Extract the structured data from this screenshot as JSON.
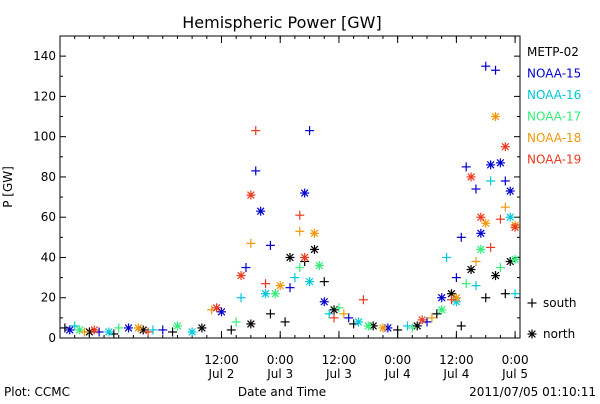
{
  "chart_data": {
    "type": "scatter",
    "title": "Hemispheric Power [GW]",
    "xlabel": "Date and Time",
    "ylabel": "P [GW]",
    "ylim": [
      0,
      150
    ],
    "yticks": [
      0,
      20,
      40,
      60,
      80,
      100,
      120,
      140
    ],
    "xlim": [
      "2011-07-01T03:00",
      "2011-07-05T01:00"
    ],
    "xticks": [
      {
        "time": "2011-07-02T12:00",
        "line1": "12:00",
        "line2": "Jul 2"
      },
      {
        "time": "2011-07-03T00:00",
        "line1": "0:00",
        "line2": "Jul 3"
      },
      {
        "time": "2011-07-03T12:00",
        "line1": "12:00",
        "line2": "Jul 3"
      },
      {
        "time": "2011-07-04T00:00",
        "line1": "0:00",
        "line2": "Jul 4"
      },
      {
        "time": "2011-07-04T12:00",
        "line1": "12:00",
        "line2": "Jul 4"
      },
      {
        "time": "2011-07-05T00:00",
        "line1": "0:00",
        "line2": "Jul 5"
      }
    ],
    "grid": false,
    "legend_position": "right",
    "marker_legend": [
      {
        "marker": "+",
        "label": "south"
      },
      {
        "marker": "*",
        "label": "north"
      }
    ],
    "series": [
      {
        "name": "METP-02",
        "color": "#000000",
        "points": [
          {
            "t": "2011-07-01T04:00",
            "v": 5,
            "h": "+"
          },
          {
            "t": "2011-07-01T09:00",
            "v": 3,
            "h": "*"
          },
          {
            "t": "2011-07-01T14:00",
            "v": 2,
            "h": "+"
          },
          {
            "t": "2011-07-01T20:00",
            "v": 4,
            "h": "*"
          },
          {
            "t": "2011-07-02T02:00",
            "v": 3,
            "h": "+"
          },
          {
            "t": "2011-07-02T08:00",
            "v": 5,
            "h": "*"
          },
          {
            "t": "2011-07-02T14:00",
            "v": 4,
            "h": "+"
          },
          {
            "t": "2011-07-02T18:00",
            "v": 7,
            "h": "*"
          },
          {
            "t": "2011-07-02T22:00",
            "v": 12,
            "h": "+"
          },
          {
            "t": "2011-07-03T01:00",
            "v": 8,
            "h": "+"
          },
          {
            "t": "2011-07-03T02:00",
            "v": 40,
            "h": "*"
          },
          {
            "t": "2011-07-03T05:00",
            "v": 38,
            "h": "+"
          },
          {
            "t": "2011-07-03T07:00",
            "v": 44,
            "h": "*"
          },
          {
            "t": "2011-07-03T09:00",
            "v": 28,
            "h": "+"
          },
          {
            "t": "2011-07-03T11:00",
            "v": 14,
            "h": "*"
          },
          {
            "t": "2011-07-03T15:00",
            "v": 7,
            "h": "+"
          },
          {
            "t": "2011-07-03T19:00",
            "v": 6,
            "h": "*"
          },
          {
            "t": "2011-07-04T00:00",
            "v": 4,
            "h": "+"
          },
          {
            "t": "2011-07-04T04:00",
            "v": 6,
            "h": "*"
          },
          {
            "t": "2011-07-04T08:00",
            "v": 12,
            "h": "+"
          },
          {
            "t": "2011-07-04T11:00",
            "v": 22,
            "h": "*"
          },
          {
            "t": "2011-07-04T13:00",
            "v": 6,
            "h": "+"
          },
          {
            "t": "2011-07-04T15:00",
            "v": 34,
            "h": "*"
          },
          {
            "t": "2011-07-04T18:00",
            "v": 20,
            "h": "+"
          },
          {
            "t": "2011-07-04T20:00",
            "v": 31,
            "h": "*"
          },
          {
            "t": "2011-07-04T22:00",
            "v": 22,
            "h": "+"
          },
          {
            "t": "2011-07-04T23:00",
            "v": 38,
            "h": "*"
          }
        ]
      },
      {
        "name": "NOAA-15",
        "color": "#0000cc",
        "points": [
          {
            "t": "2011-07-01T05:00",
            "v": 4,
            "h": "*"
          },
          {
            "t": "2011-07-01T11:00",
            "v": 3,
            "h": "+"
          },
          {
            "t": "2011-07-01T17:00",
            "v": 5,
            "h": "*"
          },
          {
            "t": "2011-07-02T00:00",
            "v": 4,
            "h": "+"
          },
          {
            "t": "2011-07-02T12:00",
            "v": 13,
            "h": "*"
          },
          {
            "t": "2011-07-02T17:00",
            "v": 35,
            "h": "+"
          },
          {
            "t": "2011-07-02T19:00",
            "v": 83,
            "h": "+"
          },
          {
            "t": "2011-07-02T20:00",
            "v": 63,
            "h": "*"
          },
          {
            "t": "2011-07-02T22:00",
            "v": 46,
            "h": "+"
          },
          {
            "t": "2011-07-03T02:00",
            "v": 25,
            "h": "+"
          },
          {
            "t": "2011-07-03T05:00",
            "v": 72,
            "h": "*"
          },
          {
            "t": "2011-07-03T06:00",
            "v": 103,
            "h": "+"
          },
          {
            "t": "2011-07-03T09:00",
            "v": 18,
            "h": "*"
          },
          {
            "t": "2011-07-03T14:00",
            "v": 10,
            "h": "+"
          },
          {
            "t": "2011-07-03T22:00",
            "v": 5,
            "h": "*"
          },
          {
            "t": "2011-07-04T06:00",
            "v": 8,
            "h": "+"
          },
          {
            "t": "2011-07-04T09:00",
            "v": 20,
            "h": "*"
          },
          {
            "t": "2011-07-04T12:00",
            "v": 30,
            "h": "+"
          },
          {
            "t": "2011-07-04T13:00",
            "v": 50,
            "h": "+"
          },
          {
            "t": "2011-07-04T14:00",
            "v": 85,
            "h": "+"
          },
          {
            "t": "2011-07-04T16:00",
            "v": 74,
            "h": "+"
          },
          {
            "t": "2011-07-04T17:00",
            "v": 52,
            "h": "*"
          },
          {
            "t": "2011-07-04T18:00",
            "v": 135,
            "h": "+"
          },
          {
            "t": "2011-07-04T19:00",
            "v": 86,
            "h": "*"
          },
          {
            "t": "2011-07-04T20:00",
            "v": 133,
            "h": "+"
          },
          {
            "t": "2011-07-04T21:00",
            "v": 87,
            "h": "*"
          },
          {
            "t": "2011-07-04T22:00",
            "v": 78,
            "h": "+"
          },
          {
            "t": "2011-07-04T23:00",
            "v": 73,
            "h": "*"
          }
        ]
      },
      {
        "name": "NOAA-16",
        "color": "#00c8d8",
        "points": [
          {
            "t": "2011-07-01T06:00",
            "v": 6,
            "h": "+"
          },
          {
            "t": "2011-07-01T13:00",
            "v": 3,
            "h": "*"
          },
          {
            "t": "2011-07-01T22:00",
            "v": 4,
            "h": "+"
          },
          {
            "t": "2011-07-02T06:00",
            "v": 3,
            "h": "*"
          },
          {
            "t": "2011-07-02T16:00",
            "v": 20,
            "h": "+"
          },
          {
            "t": "2011-07-02T21:00",
            "v": 22,
            "h": "*"
          },
          {
            "t": "2011-07-03T03:00",
            "v": 30,
            "h": "+"
          },
          {
            "t": "2011-07-03T06:00",
            "v": 28,
            "h": "*"
          },
          {
            "t": "2011-07-03T10:00",
            "v": 12,
            "h": "+"
          },
          {
            "t": "2011-07-03T16:00",
            "v": 8,
            "h": "*"
          },
          {
            "t": "2011-07-04T02:00",
            "v": 6,
            "h": "+"
          },
          {
            "t": "2011-07-04T10:00",
            "v": 40,
            "h": "+"
          },
          {
            "t": "2011-07-04T12:00",
            "v": 18,
            "h": "*"
          },
          {
            "t": "2011-07-04T16:00",
            "v": 26,
            "h": "+"
          },
          {
            "t": "2011-07-04T19:00",
            "v": 78,
            "h": "+"
          },
          {
            "t": "2011-07-04T23:00",
            "v": 60,
            "h": "*"
          },
          {
            "t": "2011-07-05T00:00",
            "v": 22,
            "h": "+"
          }
        ]
      },
      {
        "name": "NOAA-17",
        "color": "#33ee77",
        "points": [
          {
            "t": "2011-07-01T07:00",
            "v": 4,
            "h": "*"
          },
          {
            "t": "2011-07-01T15:00",
            "v": 5,
            "h": "+"
          },
          {
            "t": "2011-07-02T03:00",
            "v": 6,
            "h": "*"
          },
          {
            "t": "2011-07-02T15:00",
            "v": 8,
            "h": "+"
          },
          {
            "t": "2011-07-02T23:00",
            "v": 22,
            "h": "*"
          },
          {
            "t": "2011-07-03T04:00",
            "v": 35,
            "h": "+"
          },
          {
            "t": "2011-07-03T08:00",
            "v": 36,
            "h": "*"
          },
          {
            "t": "2011-07-03T12:00",
            "v": 15,
            "h": "+"
          },
          {
            "t": "2011-07-03T18:00",
            "v": 6,
            "h": "*"
          },
          {
            "t": "2011-07-04T03:00",
            "v": 5,
            "h": "+"
          },
          {
            "t": "2011-07-04T09:00",
            "v": 14,
            "h": "*"
          },
          {
            "t": "2011-07-04T14:00",
            "v": 27,
            "h": "+"
          },
          {
            "t": "2011-07-04T17:00",
            "v": 44,
            "h": "*"
          },
          {
            "t": "2011-07-04T21:00",
            "v": 35,
            "h": "+"
          },
          {
            "t": "2011-07-05T00:00",
            "v": 39,
            "h": "*"
          }
        ]
      },
      {
        "name": "NOAA-18",
        "color": "#f0960a",
        "points": [
          {
            "t": "2011-07-01T08:00",
            "v": 3,
            "h": "+"
          },
          {
            "t": "2011-07-01T19:00",
            "v": 5,
            "h": "*"
          },
          {
            "t": "2011-07-02T10:00",
            "v": 14,
            "h": "+"
          },
          {
            "t": "2011-07-02T18:00",
            "v": 47,
            "h": "+"
          },
          {
            "t": "2011-07-03T00:00",
            "v": 26,
            "h": "*"
          },
          {
            "t": "2011-07-03T04:00",
            "v": 53,
            "h": "+"
          },
          {
            "t": "2011-07-03T07:00",
            "v": 52,
            "h": "*"
          },
          {
            "t": "2011-07-03T13:00",
            "v": 12,
            "h": "+"
          },
          {
            "t": "2011-07-03T21:00",
            "v": 5,
            "h": "*"
          },
          {
            "t": "2011-07-04T07:00",
            "v": 10,
            "h": "+"
          },
          {
            "t": "2011-07-04T12:00",
            "v": 20,
            "h": "*"
          },
          {
            "t": "2011-07-04T16:00",
            "v": 38,
            "h": "+"
          },
          {
            "t": "2011-07-04T18:00",
            "v": 57,
            "h": "*"
          },
          {
            "t": "2011-07-04T20:00",
            "v": 110,
            "h": "*"
          },
          {
            "t": "2011-07-04T22:00",
            "v": 65,
            "h": "+"
          },
          {
            "t": "2011-07-05T00:00",
            "v": 56,
            "h": "*"
          }
        ]
      },
      {
        "name": "NOAA-19",
        "color": "#e83a1e",
        "points": [
          {
            "t": "2011-07-01T10:00",
            "v": 4,
            "h": "*"
          },
          {
            "t": "2011-07-01T21:00",
            "v": 3,
            "h": "+"
          },
          {
            "t": "2011-07-02T11:00",
            "v": 15,
            "h": "*"
          },
          {
            "t": "2011-07-02T16:00",
            "v": 31,
            "h": "*"
          },
          {
            "t": "2011-07-02T18:00",
            "v": 71,
            "h": "*"
          },
          {
            "t": "2011-07-02T19:00",
            "v": 103,
            "h": "+"
          },
          {
            "t": "2011-07-02T21:00",
            "v": 27,
            "h": "+"
          },
          {
            "t": "2011-07-03T04:00",
            "v": 61,
            "h": "+"
          },
          {
            "t": "2011-07-03T05:00",
            "v": 40,
            "h": "*"
          },
          {
            "t": "2011-07-03T11:00",
            "v": 10,
            "h": "+"
          },
          {
            "t": "2011-07-03T17:00",
            "v": 19,
            "h": "+"
          },
          {
            "t": "2011-07-04T05:00",
            "v": 9,
            "h": "*"
          },
          {
            "t": "2011-07-04T11:00",
            "v": 19,
            "h": "+"
          },
          {
            "t": "2011-07-04T15:00",
            "v": 80,
            "h": "*"
          },
          {
            "t": "2011-07-04T17:00",
            "v": 60,
            "h": "*"
          },
          {
            "t": "2011-07-04T19:00",
            "v": 45,
            "h": "+"
          },
          {
            "t": "2011-07-04T21:00",
            "v": 59,
            "h": "+"
          },
          {
            "t": "2011-07-04T22:00",
            "v": 95,
            "h": "*"
          },
          {
            "t": "2011-07-05T00:00",
            "v": 55,
            "h": "*"
          }
        ]
      }
    ]
  },
  "footer": {
    "plot_credit": "Plot: CCMC",
    "timestamp": "2011/07/05 01:10:11"
  }
}
